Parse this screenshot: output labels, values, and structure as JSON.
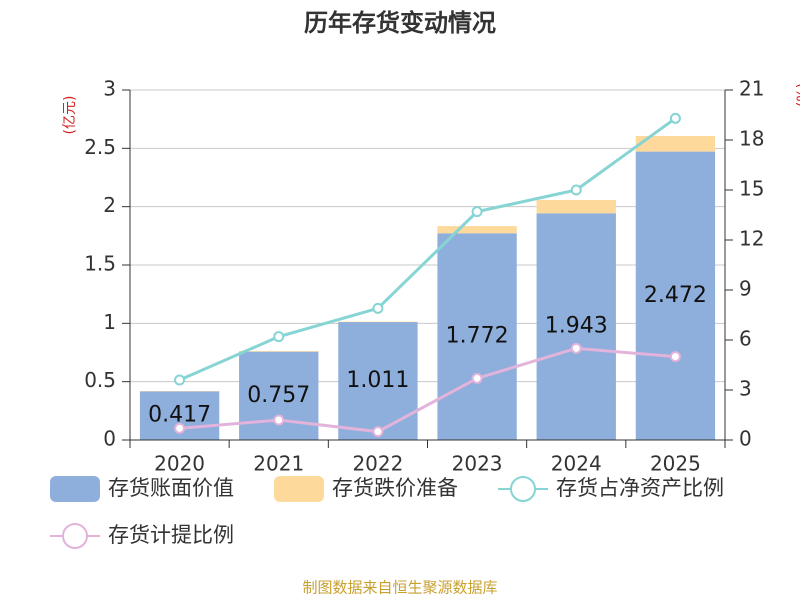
{
  "chart_data": {
    "type": "bar",
    "title": "历年存货变动情况",
    "ylabel": "(亿元)",
    "y2label": "(%)",
    "categories": [
      "2020",
      "2021",
      "2022",
      "2023",
      "2024",
      "2025"
    ],
    "series": [
      {
        "name": "存货账面价值",
        "type": "bar",
        "stack": true,
        "color": "#8eaedb",
        "values": [
          0.417,
          0.757,
          1.011,
          1.772,
          1.943,
          2.472
        ],
        "show_labels": true
      },
      {
        "name": "存货跌价准备",
        "type": "bar",
        "stack": true,
        "color": "#fdd99b",
        "values": [
          0.003,
          0.006,
          0.004,
          0.062,
          0.114,
          0.134
        ]
      },
      {
        "name": "存货占净资产比例",
        "type": "line",
        "axis": "y2",
        "color": "#86d4d4",
        "values": [
          3.6,
          6.2,
          7.9,
          13.7,
          15.0,
          19.3
        ]
      },
      {
        "name": "存货计提比例",
        "type": "line",
        "axis": "y2",
        "color": "#e2b3db",
        "values": [
          0.7,
          1.2,
          0.5,
          3.7,
          5.5,
          5.0
        ]
      }
    ],
    "ylim": [
      0,
      3
    ],
    "yticks": [
      0,
      0.5,
      1,
      1.5,
      2,
      2.5,
      3
    ],
    "y2lim": [
      0,
      21
    ],
    "y2ticks": [
      0,
      3,
      6,
      9,
      12,
      15,
      18,
      21
    ],
    "grid": true,
    "source": "制图数据来自恒生聚源数据库"
  }
}
